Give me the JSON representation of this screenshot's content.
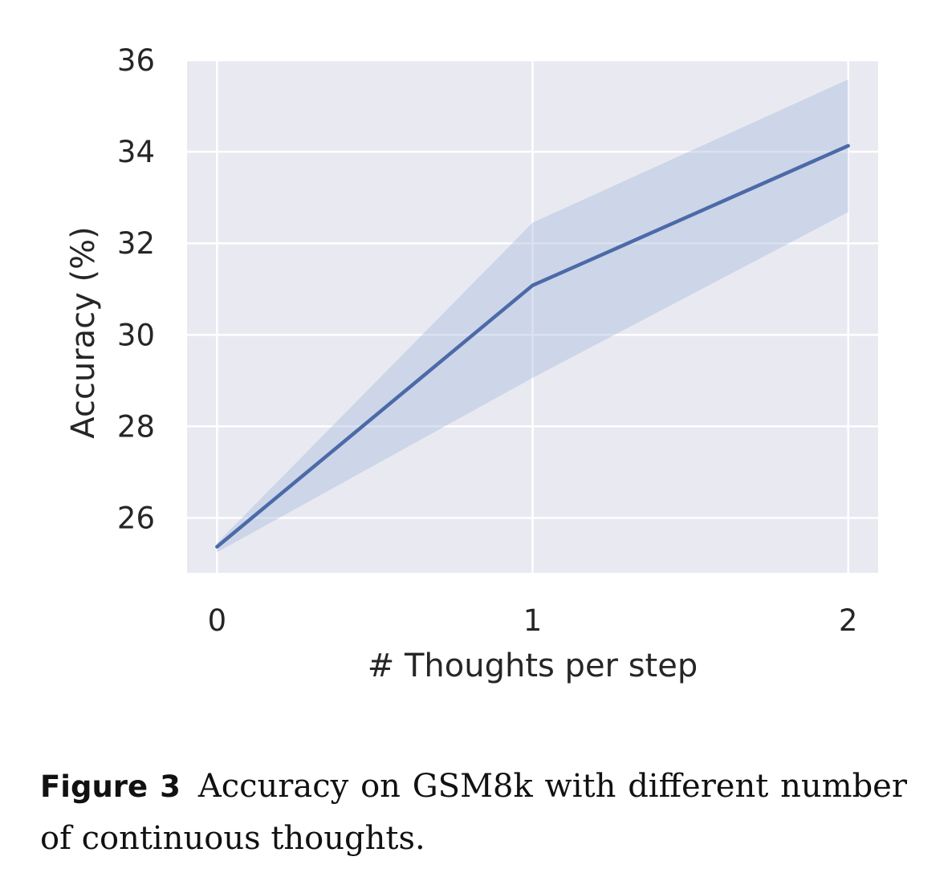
{
  "chart_data": {
    "type": "line",
    "title": "",
    "xlabel": "# Thoughts per step",
    "ylabel": "Accuracy (%)",
    "x": [
      0,
      1,
      2
    ],
    "x_ticks": [
      "0",
      "1",
      "2"
    ],
    "y_ticks": [
      "26",
      "28",
      "30",
      "32",
      "34",
      "36"
    ],
    "xlim": [
      -0.095,
      2.095
    ],
    "ylim": [
      24.8,
      36.0
    ],
    "grid": true,
    "series": [
      {
        "values": [
          25.37,
          31.08,
          34.13
        ],
        "band_upper": [
          25.45,
          32.45,
          35.58
        ],
        "band_lower": [
          25.25,
          29.06,
          32.68
        ]
      }
    ],
    "colors": {
      "line": "#4c6aa8",
      "band": "#a8b8dc",
      "plot_background": "#e9eaf1",
      "grid": "#ffffff",
      "text": "#262626"
    }
  },
  "caption": {
    "label": "Figure 3",
    "text": "Accuracy on GSM8k with different number of continuous thoughts."
  }
}
